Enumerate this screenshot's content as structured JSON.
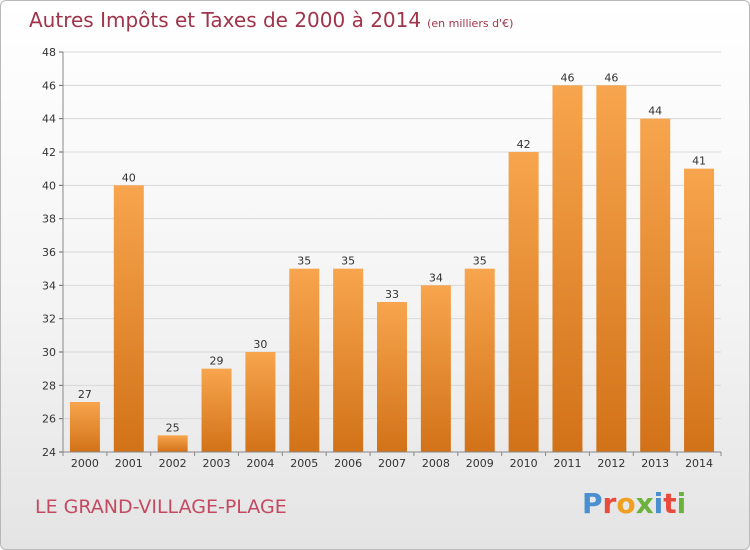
{
  "header": {
    "title": "Autres Impôts et Taxes de 2000 à 2014",
    "subtitle": "(en milliers d'€)"
  },
  "footer": {
    "town": "LE GRAND-VILLAGE-PLAGE",
    "brand_letters": [
      "P",
      "r",
      "o",
      "x",
      "i",
      "t",
      "i"
    ]
  },
  "colors": {
    "title": "#a0344a",
    "bar_top": "#f7a54e",
    "bar_bottom": "#d27218",
    "brand": [
      "#4a90d0",
      "#e84a3c",
      "#f0a020",
      "#6cb33e",
      "#4a90d0",
      "#e84a3c",
      "#6cb33e"
    ]
  },
  "chart_data": {
    "type": "bar",
    "categories": [
      "2000",
      "2001",
      "2002",
      "2003",
      "2004",
      "2005",
      "2006",
      "2007",
      "2008",
      "2009",
      "2010",
      "2011",
      "2012",
      "2013",
      "2014"
    ],
    "values": [
      27,
      40,
      25,
      29,
      30,
      35,
      35,
      33,
      34,
      35,
      42,
      46,
      46,
      44,
      41
    ],
    "ylim": [
      24,
      48
    ],
    "yticks": [
      24,
      26,
      28,
      30,
      32,
      34,
      36,
      38,
      40,
      42,
      44,
      46,
      48
    ],
    "grid": true,
    "data_labels": true
  }
}
